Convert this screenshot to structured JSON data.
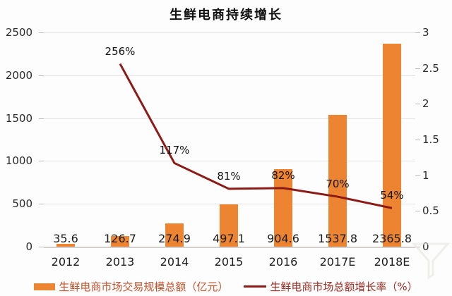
{
  "title": "生鲜电商持续增长",
  "chart_data": {
    "type": "combo-bar-line",
    "title": "生鲜电商持续增长",
    "categories": [
      "2012",
      "2013",
      "2014",
      "2015",
      "2016",
      "2017E",
      "2018E"
    ],
    "series": [
      {
        "name": "生鲜电商市场交易规模总额（亿元）",
        "type": "bar",
        "axis": "left",
        "color": "#EC8432",
        "values": [
          35.6,
          126.7,
          274.9,
          497.1,
          904.6,
          1537.8,
          2365.8
        ],
        "labels": [
          "35.6",
          "126.7",
          "274.9",
          "497.1",
          "904.6",
          "1537.8",
          "2365.8"
        ]
      },
      {
        "name": "生鲜电商市场总额增长率（%）",
        "type": "line",
        "axis": "right",
        "color": "#8C1A16",
        "values": [
          null,
          256,
          117,
          81,
          82,
          70,
          54
        ],
        "labels": [
          null,
          "256%",
          "117%",
          "81%",
          "82%",
          "70%",
          "54%"
        ]
      }
    ],
    "left_axis": {
      "min": 0,
      "max": 2500,
      "ticks": [
        0,
        500,
        1000,
        1500,
        2000,
        2500
      ]
    },
    "right_axis": {
      "min": 0,
      "max": 3,
      "ticks": [
        0,
        0.5,
        1,
        1.5,
        2,
        2.5,
        3
      ],
      "tick_labels": [
        "0",
        "0.5",
        "1",
        "1.5",
        "2",
        "2.5",
        "3"
      ]
    },
    "grid": true,
    "legend_position": "bottom"
  },
  "legend": {
    "bar_label": "生鲜电商市场交易规模总额（亿元）",
    "line_label": "生鲜电商市场总额增长率（%）"
  }
}
